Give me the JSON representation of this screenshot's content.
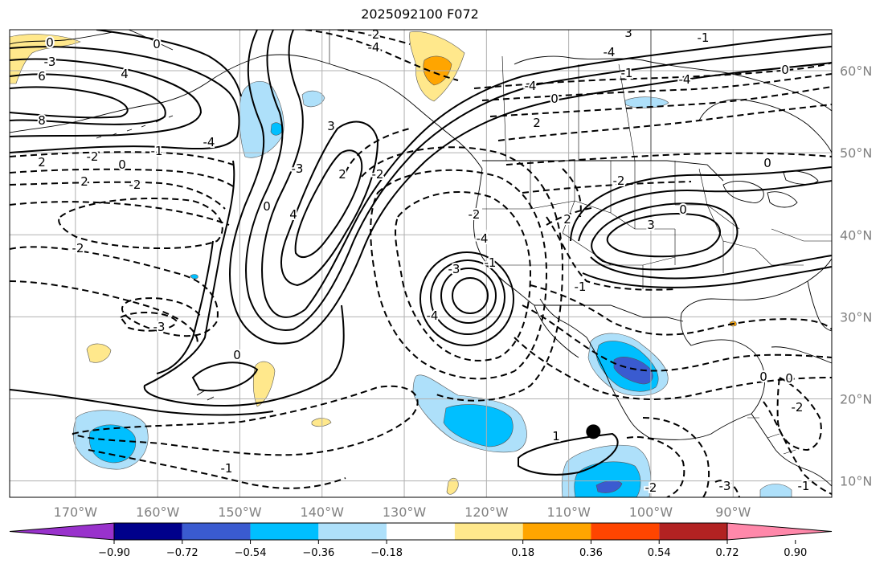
{
  "title": "2025092100 F072",
  "map": {
    "lon_range": [
      -178,
      -78
    ],
    "lat_range": [
      8,
      65
    ],
    "lon_ticks": [
      {
        "lon": -170,
        "label": "170°W"
      },
      {
        "lon": -160,
        "label": "160°W"
      },
      {
        "lon": -150,
        "label": "150°W"
      },
      {
        "lon": -140,
        "label": "140°W"
      },
      {
        "lon": -130,
        "label": "130°W"
      },
      {
        "lon": -120,
        "label": "120°W"
      },
      {
        "lon": -110,
        "label": "110°W"
      },
      {
        "lon": -100,
        "label": "100°W"
      },
      {
        "lon": -90,
        "label": "90°W"
      }
    ],
    "lat_ticks": [
      {
        "lat": 60,
        "label": "60°N"
      },
      {
        "lat": 50,
        "label": "50°N"
      },
      {
        "lat": 40,
        "label": "40°N"
      },
      {
        "lat": 30,
        "label": "30°N"
      },
      {
        "lat": 20,
        "label": "20°N"
      },
      {
        "lat": 10,
        "label": "10°N"
      }
    ],
    "grid": true,
    "marker": {
      "lon": -107,
      "lat": 16,
      "color": "#000000"
    }
  },
  "colorbar": {
    "orientation": "horizontal",
    "colors": [
      "#9932cc",
      "#00008b",
      "#3a5bd0",
      "#00bfff",
      "#aee0fa",
      "#ffffff",
      "#ffe88c",
      "#ffa500",
      "#ff4500",
      "#b22222",
      "#ff88aa"
    ],
    "extend": "both",
    "tick_labels": [
      "−0.90",
      "−0.72",
      "−0.54",
      "−0.36",
      "−0.18",
      "0.18",
      "0.36",
      "0.54",
      "0.72",
      "0.90"
    ]
  },
  "contour_labels": [
    "0",
    "-3",
    "6",
    "8",
    "2",
    "4",
    "0",
    "-2",
    "-4",
    "-3",
    "-2",
    "2",
    "0",
    "-1",
    "-2",
    "-4",
    "-2",
    "-3",
    "4",
    "3",
    "0",
    "2",
    "-2",
    "-3",
    "0",
    "-3",
    "-4",
    "-2",
    "-4",
    "-1",
    "-4",
    "0",
    "2",
    "3",
    "-4",
    "-1",
    "-4",
    "0",
    "-1",
    "2",
    "-2",
    "-1",
    "3",
    "0",
    "0",
    "0",
    "-2",
    "-1",
    "-3",
    "-2",
    "1",
    "0",
    "-1"
  ]
}
